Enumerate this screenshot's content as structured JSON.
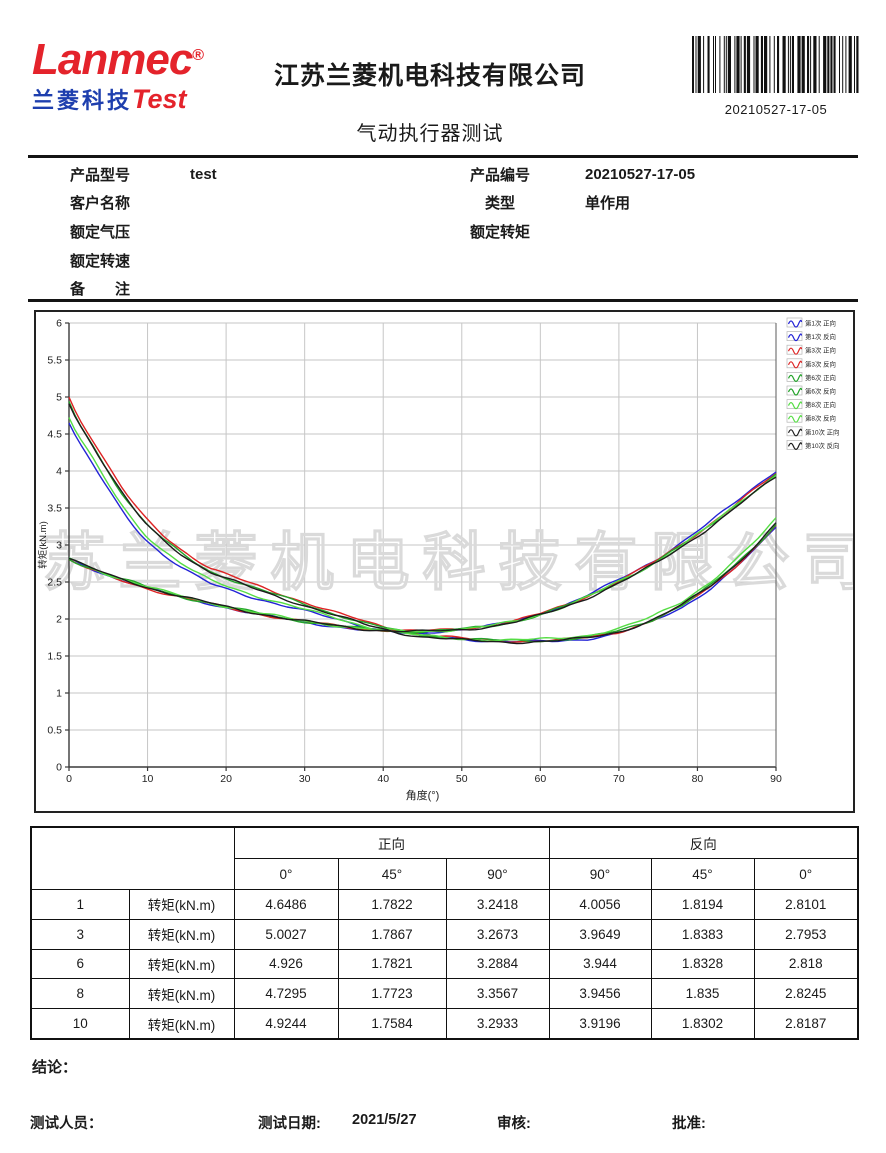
{
  "logo": {
    "brand": "Lanmec",
    "reg": "®",
    "sub_cn": "兰菱科技",
    "sub_en": "Test"
  },
  "header": {
    "company": "江苏兰菱机电科技有限公司",
    "title": "气动执行器测试",
    "barcode_text": "20210527-17-05"
  },
  "info": {
    "left": [
      {
        "label": "产品型号",
        "value": "test"
      },
      {
        "label": "客户名称",
        "value": ""
      },
      {
        "label": "额定气压",
        "value": ""
      },
      {
        "label": "额定转速",
        "value": ""
      },
      {
        "label": "备　　注",
        "value": ""
      }
    ],
    "right": [
      {
        "label": "产品编号",
        "value": "20210527-17-05"
      },
      {
        "label": "类型",
        "value": "单作用"
      },
      {
        "label": "额定转矩",
        "value": ""
      }
    ]
  },
  "chart_data": {
    "type": "line",
    "title": "",
    "xlabel": "角度(°)",
    "ylabel": "转矩(kN.m)",
    "xlim": [
      0,
      90
    ],
    "ylim": [
      0,
      6
    ],
    "xticks": [
      0,
      10,
      20,
      30,
      40,
      50,
      60,
      70,
      80,
      90
    ],
    "yticks": [
      0,
      0.5,
      1,
      1.5,
      2,
      2.5,
      3,
      3.5,
      4,
      4.5,
      5,
      5.5,
      6
    ],
    "grid": true,
    "legend_position": "right-top",
    "watermark": "江苏兰菱机电科技有限公司",
    "base_forward": {
      "anchors": {
        "a0": 4.85,
        "a45": 1.79,
        "a90": 3.29
      },
      "x": [
        0,
        1,
        2,
        3,
        4,
        5,
        6,
        7,
        8,
        9,
        10,
        12,
        14,
        16,
        18,
        20,
        23,
        26,
        30,
        34,
        38,
        42,
        45,
        48,
        51,
        55,
        58,
        62,
        66,
        70,
        74,
        78,
        82,
        85,
        88,
        90
      ],
      "y": [
        4.85,
        4.62,
        4.45,
        4.28,
        4.1,
        3.93,
        3.76,
        3.6,
        3.46,
        3.33,
        3.21,
        3.02,
        2.86,
        2.72,
        2.6,
        2.52,
        2.41,
        2.31,
        2.18,
        2.05,
        1.93,
        1.84,
        1.79,
        1.76,
        1.735,
        1.715,
        1.71,
        1.72,
        1.76,
        1.84,
        1.98,
        2.19,
        2.48,
        2.75,
        3.05,
        3.29
      ]
    },
    "base_reverse": {
      "anchors": {
        "a0": 2.82,
        "a45": 1.83,
        "a90": 3.95
      },
      "x": [
        0,
        2,
        4,
        6,
        8,
        10,
        13,
        16,
        19,
        22,
        25,
        28,
        31,
        34,
        37,
        40,
        43,
        45,
        48,
        51,
        54,
        57,
        60,
        63,
        66,
        69,
        72,
        75,
        78,
        81,
        84,
        87,
        90
      ],
      "y": [
        2.82,
        2.72,
        2.64,
        2.56,
        2.5,
        2.43,
        2.34,
        2.26,
        2.19,
        2.12,
        2.06,
        2.0,
        1.95,
        1.91,
        1.87,
        1.845,
        1.83,
        1.83,
        1.845,
        1.87,
        1.91,
        1.97,
        2.06,
        2.17,
        2.3,
        2.45,
        2.61,
        2.79,
        3.0,
        3.22,
        3.46,
        3.71,
        3.95
      ]
    },
    "series": [
      {
        "name": "第1次 正向",
        "color": "#2323d6",
        "dir": "forward",
        "v0": 4.6486,
        "v45": 1.7822,
        "v90": 3.2418
      },
      {
        "name": "第1次 反向",
        "color": "#2323d6",
        "dir": "reverse",
        "v0": 2.8101,
        "v45": 1.8194,
        "v90": 4.0056
      },
      {
        "name": "第3次 正向",
        "color": "#dd2424",
        "dir": "forward",
        "v0": 5.0027,
        "v45": 1.7867,
        "v90": 3.2673
      },
      {
        "name": "第3次 反向",
        "color": "#dd2424",
        "dir": "reverse",
        "v0": 2.7953,
        "v45": 1.8383,
        "v90": 3.9649
      },
      {
        "name": "第6次 正向",
        "color": "#23a32a",
        "dir": "forward",
        "v0": 4.926,
        "v45": 1.7821,
        "v90": 3.2884
      },
      {
        "name": "第6次 反向",
        "color": "#23a32a",
        "dir": "reverse",
        "v0": 2.818,
        "v45": 1.8328,
        "v90": 3.944
      },
      {
        "name": "第8次 正向",
        "color": "#55dd44",
        "dir": "forward",
        "v0": 4.7295,
        "v45": 1.7723,
        "v90": 3.3567
      },
      {
        "name": "第8次 反向",
        "color": "#55dd44",
        "dir": "reverse",
        "v0": 2.8245,
        "v45": 1.835,
        "v90": 3.9456
      },
      {
        "name": "第10次 正向",
        "color": "#1c1c1c",
        "dir": "forward",
        "v0": 4.9244,
        "v45": 1.7584,
        "v90": 3.2933
      },
      {
        "name": "第10次 反向",
        "color": "#1c1c1c",
        "dir": "reverse",
        "v0": 2.8187,
        "v45": 1.8302,
        "v90": 3.9196
      }
    ]
  },
  "table": {
    "group_headers": [
      {
        "label": "正向",
        "span": 3
      },
      {
        "label": "反向",
        "span": 3
      }
    ],
    "sub_headers": [
      "0°",
      "45°",
      "90°",
      "90°",
      "45°",
      "0°"
    ],
    "row_label": "转矩(kN.m)",
    "rows": [
      {
        "no": "1",
        "values": [
          "4.6486",
          "1.7822",
          "3.2418",
          "4.0056",
          "1.8194",
          "2.8101"
        ]
      },
      {
        "no": "3",
        "values": [
          "5.0027",
          "1.7867",
          "3.2673",
          "3.9649",
          "1.8383",
          "2.7953"
        ]
      },
      {
        "no": "6",
        "values": [
          "4.926",
          "1.7821",
          "3.2884",
          "3.944",
          "1.8328",
          "2.818"
        ]
      },
      {
        "no": "8",
        "values": [
          "4.7295",
          "1.7723",
          "3.3567",
          "3.9456",
          "1.835",
          "2.8245"
        ]
      },
      {
        "no": "10",
        "values": [
          "4.9244",
          "1.7584",
          "3.2933",
          "3.9196",
          "1.8302",
          "2.8187"
        ]
      }
    ]
  },
  "conclusion": {
    "label": "结论："
  },
  "footer": {
    "tester_label": "测试人员：",
    "date_label": "测试日期:",
    "date_value": "2021/5/27",
    "review_label": "审核:",
    "approve_label": "批准:"
  }
}
